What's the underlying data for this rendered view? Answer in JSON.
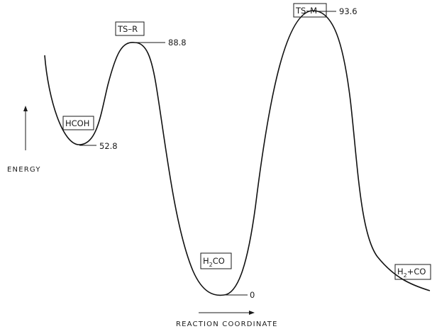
{
  "species": {
    "hcoh": {
      "label": "HCOH",
      "energy": "52.8"
    },
    "ts_r": {
      "label": "TS–R",
      "energy": "88.8"
    },
    "h2co": {
      "label_main": "H",
      "label_sub": "2",
      "label_rest": "CO",
      "energy": "0"
    },
    "ts_m": {
      "label": "TS–M",
      "energy": "93.6"
    },
    "products": {
      "label_main": "H",
      "label_sub": "2",
      "label_rest": "+CO"
    }
  },
  "axes": {
    "y_label": "ENERGY",
    "x_label": "REACTION COORDINATE"
  }
}
